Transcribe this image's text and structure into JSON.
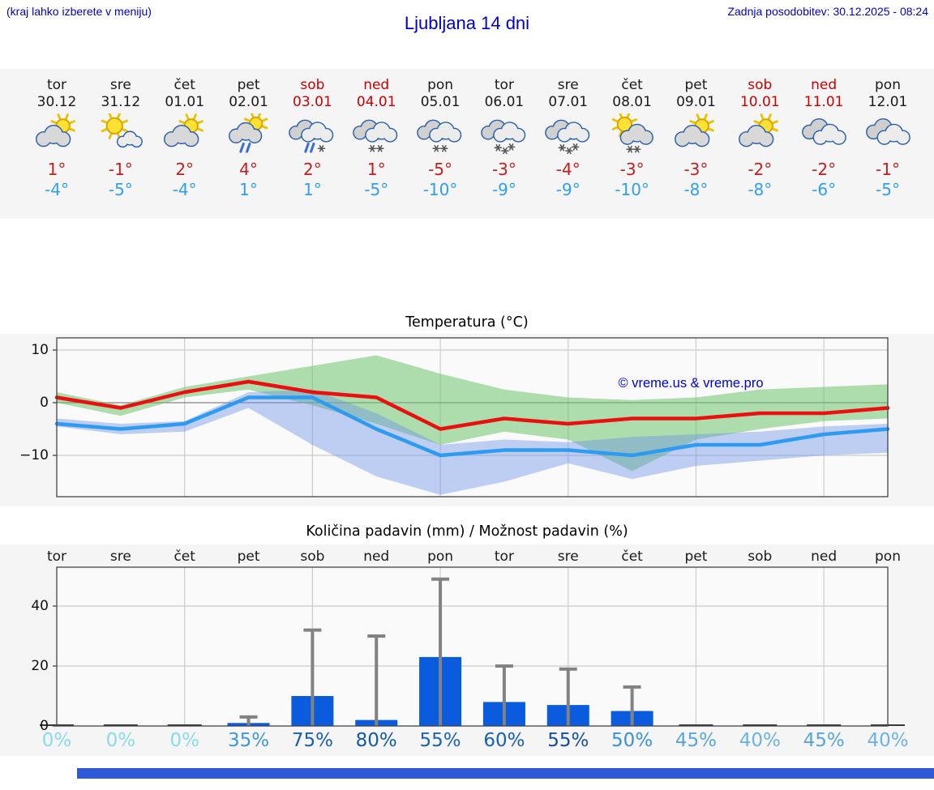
{
  "header": {
    "note": "(kraj lahko izberete v meniju)",
    "title": "Ljubljana 14 dni",
    "updated": "Zadnja posodobitev: 30.12.2025 - 08:24"
  },
  "colors": {
    "link_blue": "#0000CC",
    "weekend_red": "#CC0000",
    "high_temp": "#C41E1E",
    "low_temp": "#2FA0EE",
    "temp_line_max": "#E81010",
    "temp_line_min": "#2E9BF0",
    "band_max": "rgba(110,195,110,0.55)",
    "band_min": "rgba(105,145,230,0.42)",
    "bar_blue": "#0A5BDE",
    "whisker_gray": "#828282",
    "panel_gray": "#F5F5F5",
    "plot_bg": "#FAFAFA",
    "grid": "#CCCCCC",
    "scrollbar_blue": "#2E59D8"
  },
  "days": [
    {
      "name": "tor",
      "date": "30.12",
      "weekend": false,
      "icon": "sun-cloud",
      "hi": "1°",
      "lo": "-4°"
    },
    {
      "name": "sre",
      "date": "31.12",
      "weekend": false,
      "icon": "cloud-sun-small",
      "hi": "-1°",
      "lo": "-5°"
    },
    {
      "name": "čet",
      "date": "01.01",
      "weekend": false,
      "icon": "sun-cloud",
      "hi": "2°",
      "lo": "-4°"
    },
    {
      "name": "pet",
      "date": "02.01",
      "weekend": false,
      "icon": "sun-cloud-rain",
      "hi": "4°",
      "lo": "1°"
    },
    {
      "name": "sob",
      "date": "03.01",
      "weekend": true,
      "icon": "cloud-rain-snow",
      "hi": "2°",
      "lo": "1°"
    },
    {
      "name": "ned",
      "date": "04.01",
      "weekend": true,
      "icon": "cloud-snow-2",
      "hi": "1°",
      "lo": "-5°"
    },
    {
      "name": "pon",
      "date": "05.01",
      "weekend": false,
      "icon": "cloud-snow-2",
      "hi": "-5°",
      "lo": "-10°"
    },
    {
      "name": "tor",
      "date": "06.01",
      "weekend": false,
      "icon": "cloud-snow-3",
      "hi": "-3°",
      "lo": "-9°"
    },
    {
      "name": "sre",
      "date": "07.01",
      "weekend": false,
      "icon": "cloud-snow-3",
      "hi": "-4°",
      "lo": "-9°"
    },
    {
      "name": "čet",
      "date": "08.01",
      "weekend": false,
      "icon": "sun-cloud-snow",
      "hi": "-3°",
      "lo": "-10°"
    },
    {
      "name": "pet",
      "date": "09.01",
      "weekend": false,
      "icon": "sun-cloud",
      "hi": "-3°",
      "lo": "-8°"
    },
    {
      "name": "sob",
      "date": "10.01",
      "weekend": true,
      "icon": "sun-cloud",
      "hi": "-2°",
      "lo": "-8°"
    },
    {
      "name": "ned",
      "date": "11.01",
      "weekend": true,
      "icon": "cloudy",
      "hi": "-2°",
      "lo": "-6°"
    },
    {
      "name": "pon",
      "date": "12.01",
      "weekend": false,
      "icon": "cloudy",
      "hi": "-1°",
      "lo": "-5°"
    }
  ],
  "chart_data": [
    {
      "type": "line",
      "title": "Temperatura (°C)",
      "watermark": "© vreme.us & vreme.pro",
      "yticks": [
        10,
        0,
        -10
      ],
      "ytick_labels": [
        "10",
        "0",
        "−10"
      ],
      "ylim": [
        -17.8,
        12.3
      ],
      "grid": true,
      "series": [
        {
          "name": "max-temp",
          "values": [
            1,
            -1,
            2,
            4,
            2,
            1,
            -5,
            -3,
            -4,
            -3,
            -3,
            -2,
            -2,
            -1
          ]
        },
        {
          "name": "min-temp",
          "values": [
            -4,
            -5,
            -4,
            1,
            1,
            -5,
            -10,
            -9,
            -9,
            -10,
            -8,
            -8,
            -6,
            -5
          ]
        }
      ],
      "bands": [
        {
          "name": "max-range",
          "upper": [
            2,
            -0.5,
            3,
            5,
            7,
            9,
            5.5,
            2.5,
            1,
            0.5,
            1,
            2.5,
            3,
            3.5
          ],
          "lower": [
            0,
            -2.5,
            1,
            2.5,
            -0.5,
            -4,
            -8,
            -5.5,
            -7,
            -13,
            -7,
            -5,
            -3.5,
            -3
          ]
        },
        {
          "name": "min-range",
          "upper": [
            -3,
            -4,
            -3.5,
            2,
            2.5,
            -2,
            -8,
            -7,
            -7.5,
            -6.5,
            -6,
            -5.5,
            -4.5,
            -4
          ],
          "lower": [
            -4.5,
            -6,
            -5.5,
            -1,
            -8,
            -14,
            -17.5,
            -15,
            -11.5,
            -14.5,
            -12,
            -11,
            -10,
            -9.5
          ]
        }
      ]
    },
    {
      "type": "bar",
      "title": "Količina padavin (mm) / Možnost padavin (%)",
      "categories": [
        "tor",
        "sre",
        "čet",
        "pet",
        "sob",
        "ned",
        "pon",
        "tor",
        "sre",
        "čet",
        "pet",
        "sob",
        "ned",
        "pon"
      ],
      "values": [
        0,
        0,
        0,
        1,
        10,
        2,
        23,
        8,
        7,
        5,
        0,
        0,
        0,
        0
      ],
      "whisker_max": [
        0,
        0,
        0,
        3,
        32,
        30,
        49,
        20,
        19,
        13,
        0,
        0,
        0,
        0
      ],
      "yticks": [
        0,
        20,
        40
      ],
      "ytick_labels": [
        "0",
        "20",
        "40"
      ],
      "ylim": [
        0,
        53
      ],
      "grid": true,
      "percents": {
        "labels": [
          "0%",
          "0%",
          "0%",
          "35%",
          "75%",
          "80%",
          "55%",
          "60%",
          "55%",
          "50%",
          "45%",
          "40%",
          "45%",
          "40%"
        ],
        "colors": [
          "#8ADBEA",
          "#8ADBEA",
          "#8ADBEA",
          "#3F98D7",
          "#1A5FB2",
          "#1559A9",
          "#1C64B0",
          "#1A5FB2",
          "#144E9A",
          "#3A91D2",
          "#57A6DD",
          "#6BB3E3",
          "#57A6DD",
          "#6BB3E3"
        ]
      }
    }
  ]
}
